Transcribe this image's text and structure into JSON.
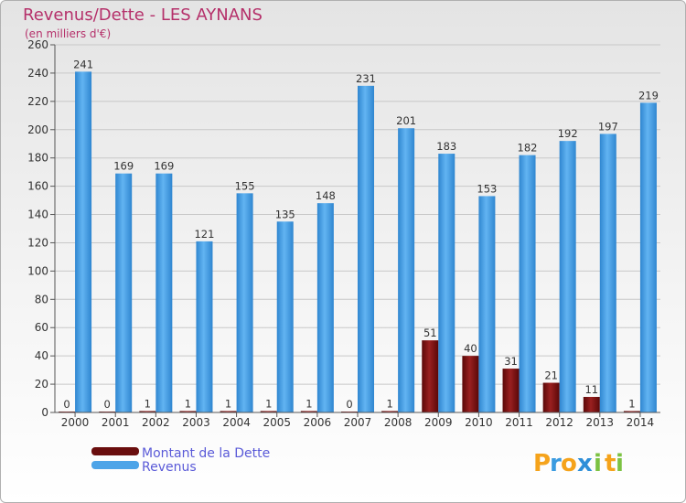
{
  "title": "Revenus/Dette - LES AYNANS",
  "subtitle": "(en milliers d'€)",
  "logo": {
    "letters": [
      "P",
      "r",
      "o",
      "x",
      "i",
      "t",
      "i"
    ],
    "colors": [
      "#f5a31b",
      "#3a9be0",
      "#f5a31b",
      "#2e8fd8",
      "#7cc242",
      "#f5a31b",
      "#7cc242"
    ]
  },
  "colors": {
    "dette": "#7a0f0f",
    "revenus": "#4da4e8",
    "title": "#b5306a",
    "legend_text": "#5a5ad8",
    "grid": "#c8c8c8"
  },
  "chart_data": {
    "type": "bar",
    "title": "Revenus/Dette - LES AYNANS",
    "subtitle": "(en milliers d'€)",
    "categories": [
      "2000",
      "2001",
      "2002",
      "2003",
      "2004",
      "2005",
      "2006",
      "2007",
      "2008",
      "2009",
      "2010",
      "2011",
      "2012",
      "2013",
      "2014"
    ],
    "series": [
      {
        "name": "Montant de la Dette",
        "values": [
          0,
          0,
          1,
          1,
          1,
          1,
          1,
          0,
          1,
          51,
          40,
          31,
          21,
          11,
          1
        ]
      },
      {
        "name": "Revenus",
        "values": [
          241,
          169,
          169,
          121,
          155,
          135,
          148,
          231,
          201,
          183,
          153,
          182,
          192,
          197,
          219
        ]
      }
    ],
    "ylim": [
      0,
      260
    ],
    "yticks": [
      0,
      20,
      40,
      60,
      80,
      100,
      120,
      140,
      160,
      180,
      200,
      220,
      240,
      260
    ],
    "grid": true,
    "legend": "bottom-left"
  }
}
